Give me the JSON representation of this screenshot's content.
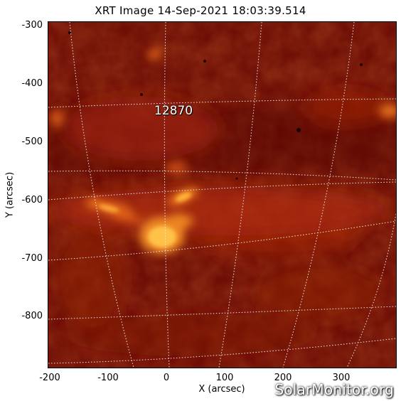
{
  "title": "XRT Image  14-Sep-2021  18:03:39.514",
  "x_axis": {
    "label": "X (arcsec)",
    "ticks": [
      "-200",
      "-100",
      "0",
      "100",
      "200",
      "300"
    ]
  },
  "y_axis": {
    "label": "Y (arcsec)",
    "ticks": [
      "-300",
      "-400",
      "-500",
      "-600",
      "-700",
      "-800"
    ]
  },
  "annotations": {
    "region": "12870"
  },
  "watermark": "SolarMonitor.org",
  "colors": {
    "background": "#6b0c05",
    "bright": "#ffb23a",
    "mid": "#c8320e",
    "grid": "#e8e8e8"
  }
}
